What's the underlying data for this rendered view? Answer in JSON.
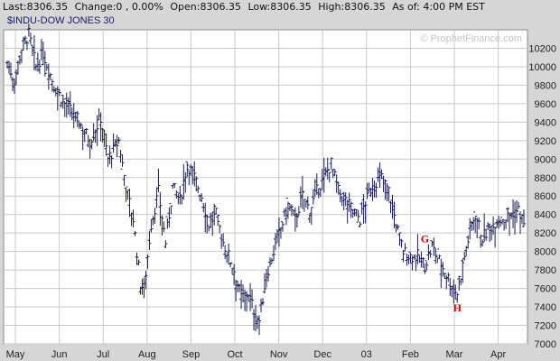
{
  "header": {
    "last": "Last:8306.35",
    "change": "Change:0 , 0.00%",
    "open": "Open:8306.35",
    "low": "Low:8306.35",
    "high": "High:8306.35",
    "asof": "As of:  4:00 PM EST"
  },
  "colors": {
    "page_bg": "#d6d6d6",
    "plot_bg": "#ffffff",
    "grid": "#c8c8c8",
    "bars": "#1a1a4e",
    "title_text": "#1a1a6e",
    "annotation": "#cc0000",
    "watermark": "#c4c4c4"
  },
  "chart_data": {
    "type": "ohlc-bar",
    "title": "$INDU-DOW JONES 30",
    "watermark": "© ProphetFinance.com",
    "y_axis": {
      "position": "right",
      "range": [
        7000,
        10400
      ],
      "ticks": [
        7000,
        7200,
        7400,
        7600,
        7800,
        8000,
        8200,
        8400,
        8600,
        8800,
        9000,
        9200,
        9400,
        9600,
        9800,
        10000,
        10200
      ]
    },
    "x_axis": {
      "labels": [
        "May",
        "Jun",
        "Jul",
        "Aug",
        "Sep",
        "Oct",
        "Nov",
        "Dec",
        "03",
        "Feb",
        "Mar",
        "Apr"
      ]
    },
    "grid": true,
    "series": [
      {
        "label_points": [
          {
            "t": 0,
            "v": 10050
          },
          {
            "t": 4,
            "v": 9850
          },
          {
            "t": 8,
            "v": 10200
          },
          {
            "t": 12,
            "v": 10350
          },
          {
            "t": 16,
            "v": 10000
          },
          {
            "t": 20,
            "v": 10150
          },
          {
            "t": 26,
            "v": 9800
          },
          {
            "t": 32,
            "v": 9600
          },
          {
            "t": 40,
            "v": 9400
          },
          {
            "t": 46,
            "v": 9200
          },
          {
            "t": 52,
            "v": 9450
          },
          {
            "t": 56,
            "v": 9000
          },
          {
            "t": 62,
            "v": 9200
          },
          {
            "t": 66,
            "v": 8700
          },
          {
            "t": 70,
            "v": 8350
          },
          {
            "t": 74,
            "v": 7650
          },
          {
            "t": 76,
            "v": 7600
          },
          {
            "t": 80,
            "v": 8300
          },
          {
            "t": 84,
            "v": 8650
          },
          {
            "t": 88,
            "v": 8100
          },
          {
            "t": 92,
            "v": 8700
          },
          {
            "t": 96,
            "v": 8550
          },
          {
            "t": 100,
            "v": 8950
          },
          {
            "t": 104,
            "v": 8800
          },
          {
            "t": 108,
            "v": 8600
          },
          {
            "t": 112,
            "v": 8300
          },
          {
            "t": 116,
            "v": 8400
          },
          {
            "t": 120,
            "v": 8100
          },
          {
            "t": 126,
            "v": 7800
          },
          {
            "t": 130,
            "v": 7500
          },
          {
            "t": 134,
            "v": 7550
          },
          {
            "t": 138,
            "v": 7300
          },
          {
            "t": 140,
            "v": 7250
          },
          {
            "t": 144,
            "v": 7750
          },
          {
            "t": 148,
            "v": 8000
          },
          {
            "t": 152,
            "v": 8250
          },
          {
            "t": 156,
            "v": 8500
          },
          {
            "t": 160,
            "v": 8350
          },
          {
            "t": 164,
            "v": 8600
          },
          {
            "t": 168,
            "v": 8450
          },
          {
            "t": 172,
            "v": 8650
          },
          {
            "t": 176,
            "v": 8800
          },
          {
            "t": 180,
            "v": 8950
          },
          {
            "t": 184,
            "v": 8650
          },
          {
            "t": 188,
            "v": 8550
          },
          {
            "t": 192,
            "v": 8450
          },
          {
            "t": 196,
            "v": 8350
          },
          {
            "t": 200,
            "v": 8600
          },
          {
            "t": 204,
            "v": 8750
          },
          {
            "t": 208,
            "v": 8800
          },
          {
            "t": 212,
            "v": 8650
          },
          {
            "t": 216,
            "v": 8300
          },
          {
            "t": 220,
            "v": 8000
          },
          {
            "t": 224,
            "v": 7950
          },
          {
            "t": 228,
            "v": 7950
          },
          {
            "t": 232,
            "v": 7850
          },
          {
            "t": 236,
            "v": 8050
          },
          {
            "t": 240,
            "v": 7900
          },
          {
            "t": 244,
            "v": 7750
          },
          {
            "t": 248,
            "v": 7600
          },
          {
            "t": 250,
            "v": 7550
          },
          {
            "t": 254,
            "v": 7950
          },
          {
            "t": 258,
            "v": 8300
          },
          {
            "t": 260,
            "v": 8400
          },
          {
            "t": 264,
            "v": 8150
          },
          {
            "t": 268,
            "v": 8250
          },
          {
            "t": 272,
            "v": 8350
          },
          {
            "t": 276,
            "v": 8350
          },
          {
            "t": 280,
            "v": 8400
          },
          {
            "t": 284,
            "v": 8450
          },
          {
            "t": 287,
            "v": 8306
          }
        ]
      }
    ],
    "annotations": [
      {
        "text": "G",
        "t": 232,
        "v": 8100
      },
      {
        "text": "H",
        "t": 250,
        "v": 7350
      }
    ]
  }
}
